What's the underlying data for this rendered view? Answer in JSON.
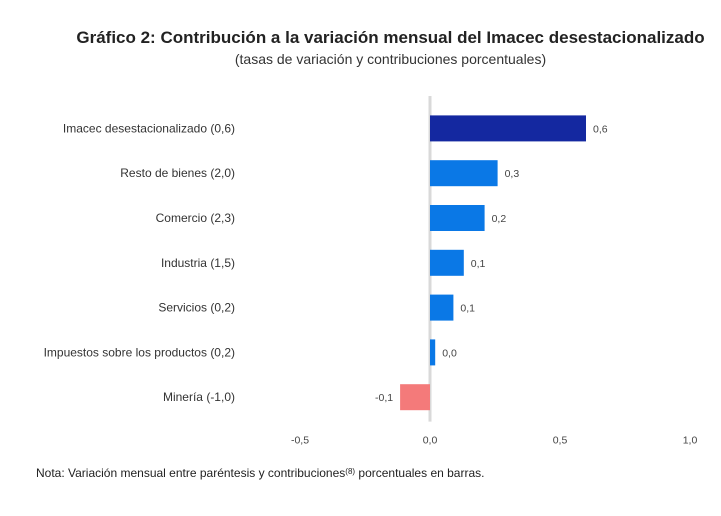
{
  "chart_data": {
    "type": "bar",
    "orientation": "horizontal",
    "title": "Gráfico 2: Contribución a la variación mensual del Imacec desestacionalizado",
    "subtitle": "(tasas de variación y contribuciones porcentuales)",
    "categories": [
      "Imacec desestacionalizado (0,6)",
      "Resto de bienes (2,0)",
      "Comercio (2,3)",
      "Industria (1,5)",
      "Servicios (0,2)",
      "Impuestos sobre los productos (0,2)",
      "Minería (-1,0)"
    ],
    "values": [
      0.6,
      0.26,
      0.21,
      0.13,
      0.09,
      0.02,
      -0.115
    ],
    "value_labels": [
      "0,6",
      "0,3",
      "0,2",
      "0,1",
      "0,1",
      "0,0",
      "-0,1"
    ],
    "bar_colors": [
      "#1428a0",
      "#0a78e6",
      "#0a78e6",
      "#0a78e6",
      "#0a78e6",
      "#0a78e6",
      "#f47a7a"
    ],
    "xlim": [
      -0.5,
      1.0
    ],
    "xticks": [
      -0.5,
      0.0,
      0.5,
      1.0
    ],
    "xtick_labels": [
      "-0,5",
      "0,0",
      "0,5",
      "1,0"
    ],
    "zero_line_color": "#d9d9d9",
    "grid": false,
    "legend": "none"
  },
  "note": {
    "prefix": "Nota: Variación mensual entre paréntesis y contribuciones",
    "ref": "(8)",
    "suffix": " porcentuales en barras."
  }
}
